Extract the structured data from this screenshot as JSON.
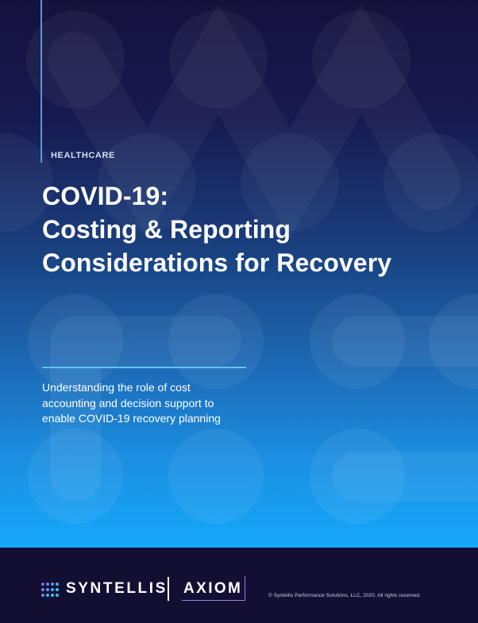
{
  "document": {
    "category": "HEALTHCARE",
    "title_lines": [
      "COVID-19:",
      "Costing & Reporting",
      "Considerations for Recovery"
    ],
    "subtitle_lines": [
      "Understanding the role of cost",
      "accounting and decision support to",
      "enable COVID-19 recovery planning"
    ]
  },
  "footer": {
    "brand_primary": "SYNTELLIS",
    "brand_secondary": "AXIOM",
    "copyright": "© Syntellis Performance Solutions, LLC, 2020. All rights reserved."
  },
  "colors": {
    "background_dark": "#130f33",
    "gradient_top": "#15113c",
    "gradient_bottom": "#16a8fb",
    "accent_line": "#3fa3e6",
    "axiom_accent": "#9f7ae0",
    "logo_dots": [
      "#7b6fe0",
      "#4f9bf0",
      "#37c4f2"
    ]
  },
  "icons": {
    "logo_mark": "syntellis-dot-grid-icon",
    "background_pattern": "molecule-blob-pattern"
  }
}
